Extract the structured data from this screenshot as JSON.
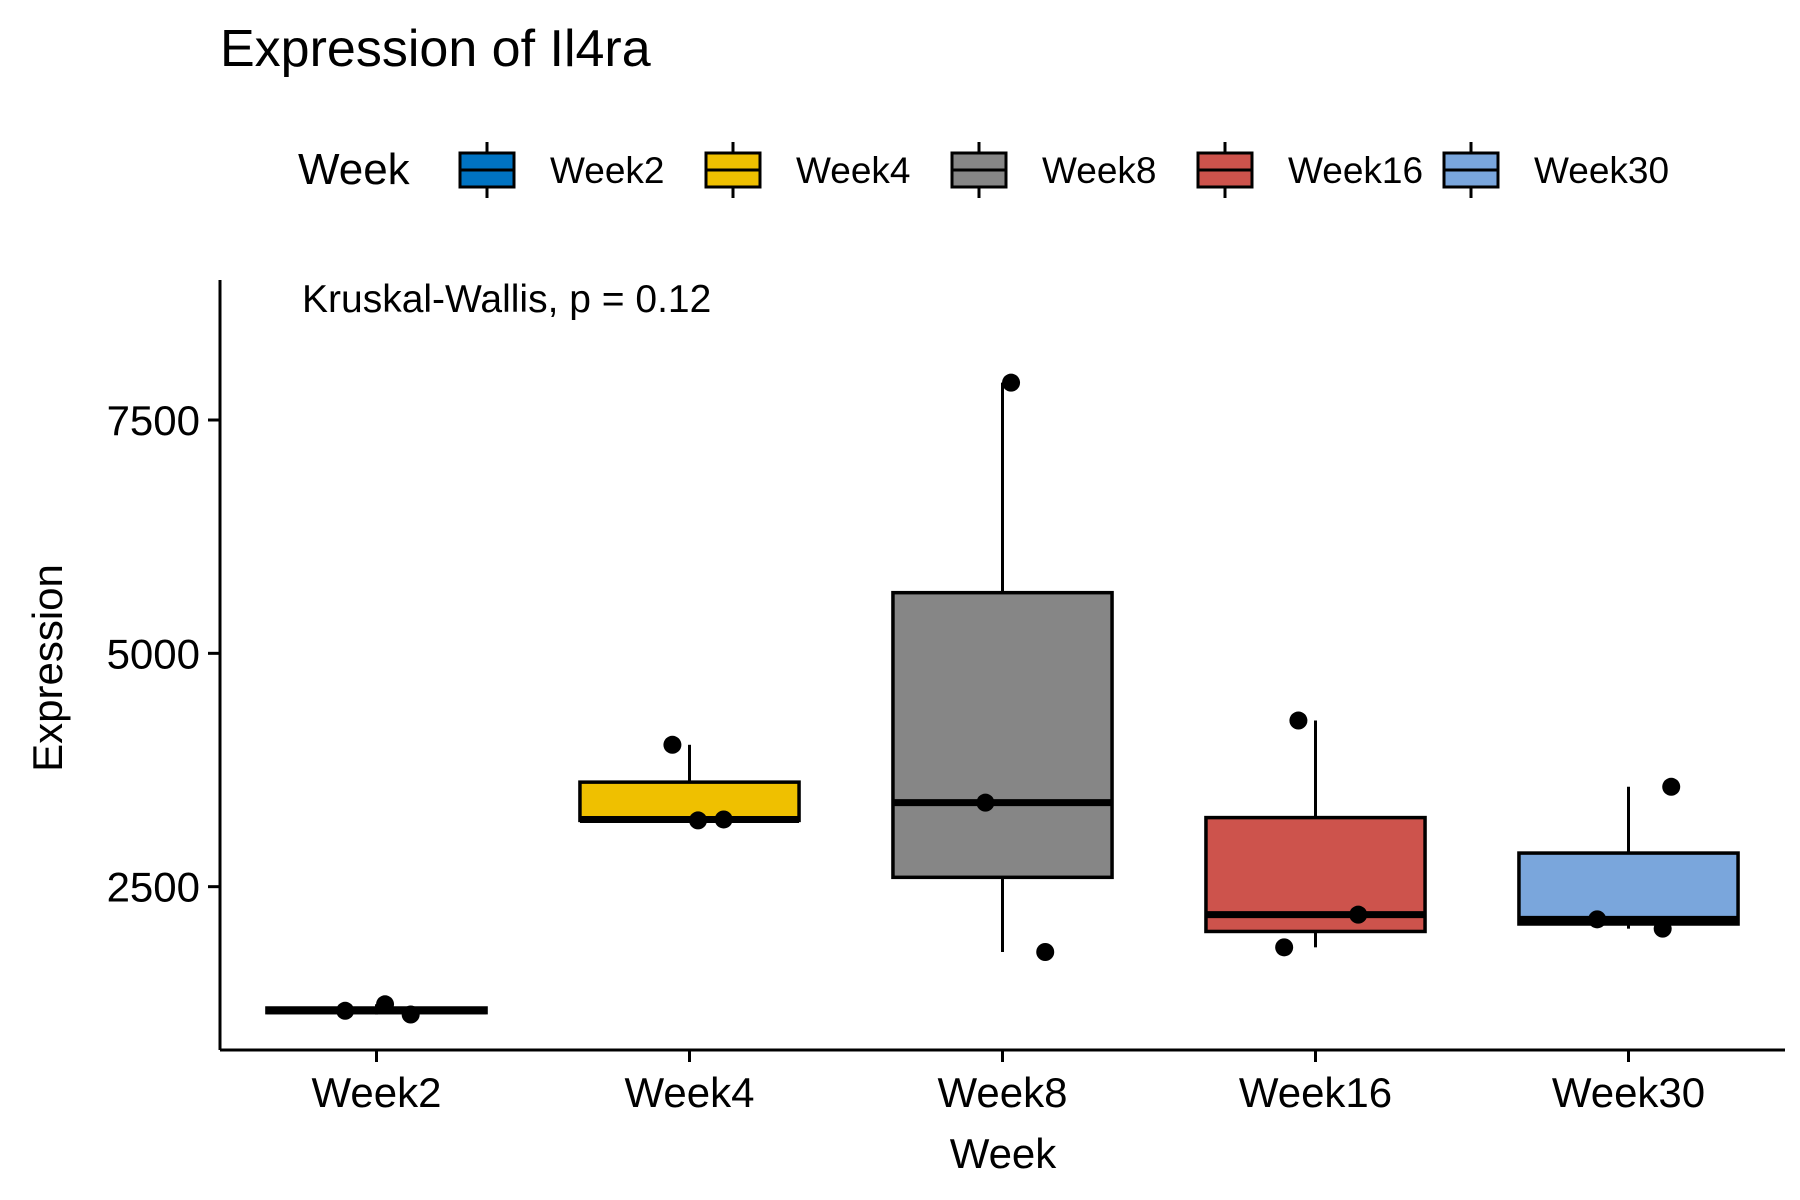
{
  "chart_data": {
    "type": "box",
    "title": "Expression of Il4ra",
    "xlabel": "Week",
    "ylabel": "Expression",
    "annotation": "Kruskal-Wallis, p = 0.12",
    "categories": [
      "Week2",
      "Week4",
      "Week8",
      "Week16",
      "Week30"
    ],
    "yticks": [
      2500,
      5000,
      7500
    ],
    "ylim": [
      750,
      9000
    ],
    "grid": false,
    "legend": {
      "title": "Week",
      "position": "top",
      "entries": [
        "Week2",
        "Week4",
        "Week8",
        "Week16",
        "Week30"
      ]
    },
    "series": [
      {
        "category": "Week2",
        "color": "#0073C2",
        "box": {
          "whisker_low": 1130,
          "q1": 1150,
          "median": 1170,
          "q3": 1200,
          "whisker_high": 1240
        },
        "points": [
          1170,
          1130,
          1240
        ]
      },
      {
        "category": "Week4",
        "color": "#EFC000",
        "box": {
          "whisker_low": 3200,
          "q1": 3210,
          "median": 3220,
          "q3": 3620,
          "whisker_high": 4020
        },
        "points": [
          3220,
          3210,
          4020
        ]
      },
      {
        "category": "Week8",
        "color": "#868686",
        "box": {
          "whisker_low": 1800,
          "q1": 2600,
          "median": 3400,
          "q3": 5650,
          "whisker_high": 7900
        },
        "points": [
          7900,
          3400,
          1800
        ]
      },
      {
        "category": "Week16",
        "color": "#CD534C",
        "box": {
          "whisker_low": 1850,
          "q1": 2020,
          "median": 2200,
          "q3": 3240,
          "whisker_high": 4280
        },
        "points": [
          4280,
          2200,
          1850
        ]
      },
      {
        "category": "Week30",
        "color": "#7AA6DC",
        "box": {
          "whisker_low": 2050,
          "q1": 2100,
          "median": 2150,
          "q3": 2860,
          "whisker_high": 3570
        },
        "points": [
          3570,
          2150,
          2050
        ]
      }
    ]
  }
}
